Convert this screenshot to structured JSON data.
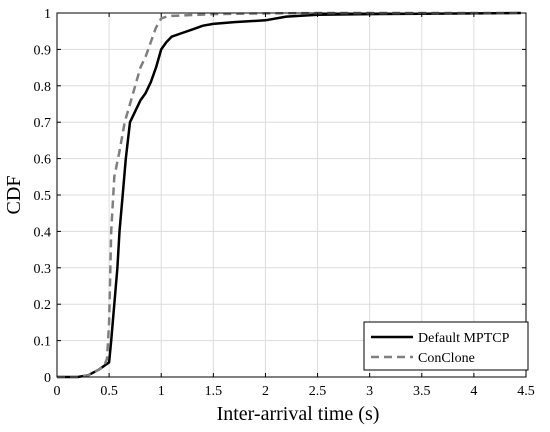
{
  "chart_data": {
    "type": "line",
    "xlabel": "Inter-arrival time (s)",
    "ylabel": "CDF",
    "xlim": [
      0,
      4.5
    ],
    "ylim": [
      0,
      1
    ],
    "xticks": [
      "0",
      "0.5",
      "1",
      "1.5",
      "2",
      "2.5",
      "3",
      "3.5",
      "4",
      "4.5"
    ],
    "yticks": [
      "0",
      "0.1",
      "0.2",
      "0.3",
      "0.4",
      "0.5",
      "0.6",
      "0.7",
      "0.8",
      "0.9",
      "1"
    ],
    "grid": true,
    "legend_position": "bottom-right",
    "series": [
      {
        "name": "Default MPTCP",
        "color": "#000000",
        "style": "solid",
        "x": [
          0,
          0.2,
          0.3,
          0.4,
          0.5,
          0.52,
          0.55,
          0.58,
          0.6,
          0.63,
          0.66,
          0.7,
          0.75,
          0.8,
          0.85,
          0.9,
          0.95,
          1.0,
          1.05,
          1.1,
          1.2,
          1.3,
          1.4,
          1.5,
          1.7,
          2.0,
          2.2,
          2.5,
          3.0,
          3.5,
          4.0,
          4.45
        ],
        "y": [
          0,
          0,
          0.005,
          0.02,
          0.04,
          0.1,
          0.2,
          0.3,
          0.4,
          0.5,
          0.6,
          0.7,
          0.73,
          0.76,
          0.78,
          0.81,
          0.85,
          0.9,
          0.92,
          0.935,
          0.945,
          0.955,
          0.965,
          0.97,
          0.975,
          0.98,
          0.99,
          0.995,
          0.997,
          0.998,
          0.999,
          1.0
        ]
      },
      {
        "name": "ConClone",
        "color": "#7f7f7f",
        "style": "dashed",
        "x": [
          0,
          0.2,
          0.3,
          0.4,
          0.45,
          0.48,
          0.5,
          0.52,
          0.55,
          0.6,
          0.65,
          0.7,
          0.75,
          0.8,
          0.85,
          0.9,
          0.95,
          1.0,
          1.05,
          1.1,
          1.2,
          1.5,
          2.0,
          2.5,
          3.0,
          4.45
        ],
        "y": [
          0,
          0,
          0.005,
          0.02,
          0.03,
          0.05,
          0.15,
          0.4,
          0.55,
          0.62,
          0.7,
          0.75,
          0.8,
          0.85,
          0.88,
          0.92,
          0.96,
          0.985,
          0.99,
          0.992,
          0.993,
          0.997,
          0.999,
          1.0,
          1.0,
          1.0
        ]
      }
    ]
  }
}
